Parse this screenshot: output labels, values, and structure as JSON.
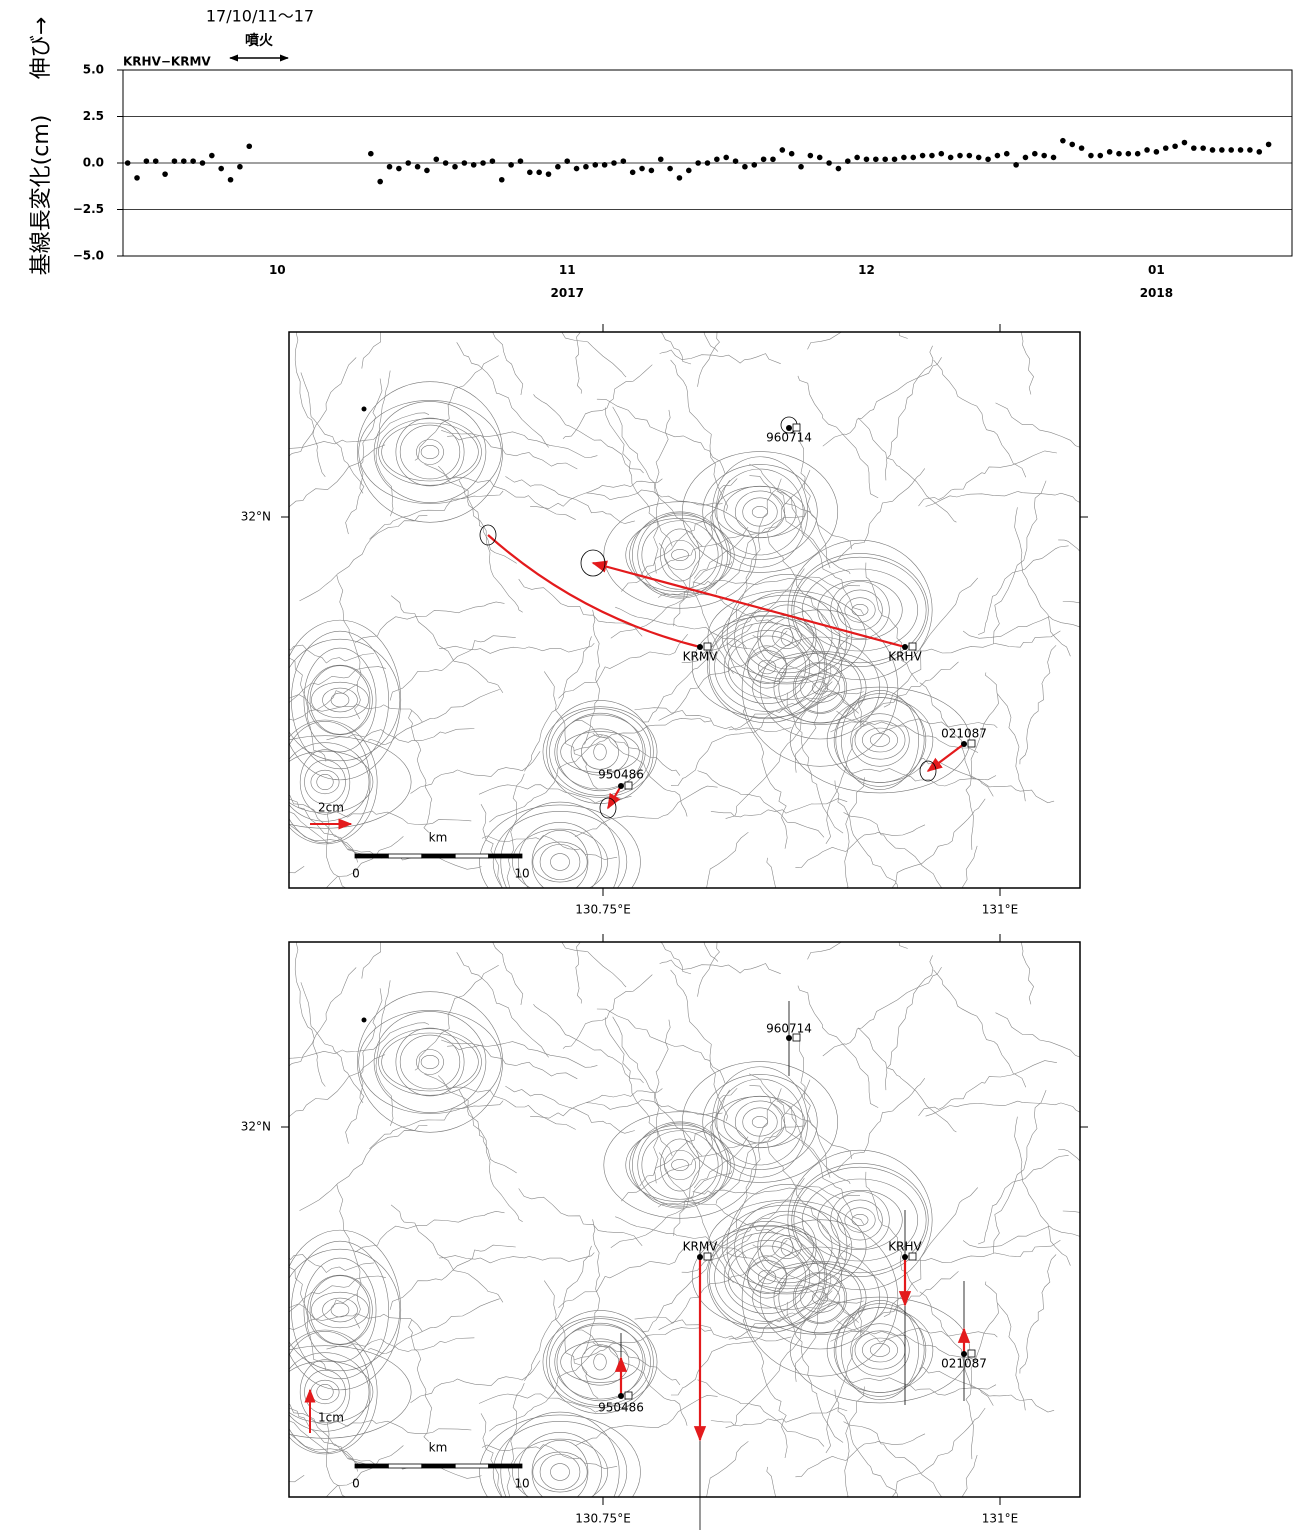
{
  "chart_data": {
    "type": "scatter",
    "ylabel": "基線長変化(cm)",
    "annotations": [
      "伸び→",
      "17/10/11～17",
      "噴火"
    ],
    "series": [
      {
        "name": "KRHV−KRMV",
        "color": "#000000",
        "values": [
          0.0,
          -0.8,
          0.1,
          0.1,
          -0.6,
          0.1,
          0.1,
          0.1,
          0.0,
          0.4,
          -0.3,
          -0.9,
          -0.2,
          0.9,
          null,
          null,
          null,
          null,
          null,
          null,
          null,
          null,
          null,
          null,
          null,
          null,
          0.5,
          -1.0,
          -0.2,
          -0.3,
          0.0,
          -0.2,
          -0.4,
          0.2,
          0.0,
          -0.2,
          0.0,
          -0.1,
          0.0,
          0.1,
          -0.9,
          -0.1,
          0.1,
          -0.5,
          -0.5,
          -0.6,
          -0.2,
          0.1,
          -0.3,
          -0.2,
          -0.1,
          -0.1,
          0.0,
          0.1,
          -0.5,
          -0.3,
          -0.4,
          0.2,
          -0.3,
          -0.8,
          -0.4,
          0.0,
          0.0,
          0.2,
          0.3,
          0.1,
          -0.2,
          -0.1,
          0.2,
          0.2,
          0.7,
          0.5,
          -0.2,
          0.4,
          0.3,
          0.0,
          -0.3,
          0.1,
          0.3,
          0.2,
          0.2,
          0.2,
          0.2,
          0.3,
          0.3,
          0.4,
          0.4,
          0.5,
          0.3,
          0.4,
          0.4,
          0.3,
          0.2,
          0.4,
          0.5,
          -0.1,
          0.3,
          0.5,
          0.4,
          0.3,
          1.2,
          1.0,
          0.8,
          0.4,
          0.4,
          0.6,
          0.5,
          0.5,
          0.5,
          0.7,
          0.6,
          0.8,
          0.9,
          1.1,
          0.8,
          0.8,
          0.7,
          0.7,
          0.7,
          0.7,
          0.7,
          0.6,
          1.0
        ]
      }
    ],
    "categories": [
      null,
      null,
      null,
      null,
      null,
      null,
      null,
      null,
      null,
      null,
      null,
      null,
      null,
      null,
      null,
      null,
      "10",
      null,
      null,
      null,
      null,
      null,
      null,
      null,
      null,
      null,
      null,
      null,
      null,
      null,
      null,
      null,
      null,
      null,
      null,
      null,
      null,
      null,
      null,
      null,
      null,
      null,
      null,
      null,
      null,
      null,
      null,
      "11\n2017",
      null,
      null,
      null,
      null,
      null,
      null,
      null,
      null,
      null,
      null,
      null,
      null,
      null,
      null,
      null,
      null,
      null,
      null,
      null,
      null,
      null,
      null,
      null,
      null,
      null,
      null,
      null,
      null,
      null,
      null,
      null,
      "12",
      null,
      null,
      null,
      null,
      null,
      null,
      null,
      null,
      null,
      null,
      null,
      null,
      null,
      null,
      null,
      null,
      null,
      null,
      null,
      null,
      null,
      null,
      null,
      null,
      null,
      null,
      null,
      null,
      null,
      null,
      "01\n2018",
      null,
      null,
      null,
      null,
      null,
      null,
      null,
      null,
      null,
      null,
      null,
      null,
      null,
      null
    ],
    "ylim": [
      -5,
      5
    ],
    "yticks": [
      {
        "value": 5,
        "label": "5.0"
      },
      {
        "value": 2.5,
        "label": "2.5"
      },
      {
        "value": 0,
        "label": "0.0"
      },
      {
        "value": -2.5,
        "label": "−2.5"
      },
      {
        "value": -5,
        "label": "−5.0"
      }
    ],
    "grid": true
  },
  "maps": [
    {
      "lat_label": "32°N",
      "lon_labels": [
        "130.75°E",
        "131°E"
      ],
      "scale_unit": "km",
      "scale_labels": [
        "0",
        "10"
      ],
      "vector_scale": "2cm",
      "stations": [
        "960714",
        "KRMV",
        "KRHV",
        "021087",
        "950486"
      ]
    },
    {
      "lat_label": "32°N",
      "lon_labels": [
        "130.75°E",
        "131°E"
      ],
      "scale_unit": "km",
      "scale_labels": [
        "0",
        "10"
      ],
      "vector_scale": "1cm",
      "stations": [
        "960714",
        "KRMV",
        "KRHV",
        "021087",
        "950486"
      ]
    }
  ]
}
